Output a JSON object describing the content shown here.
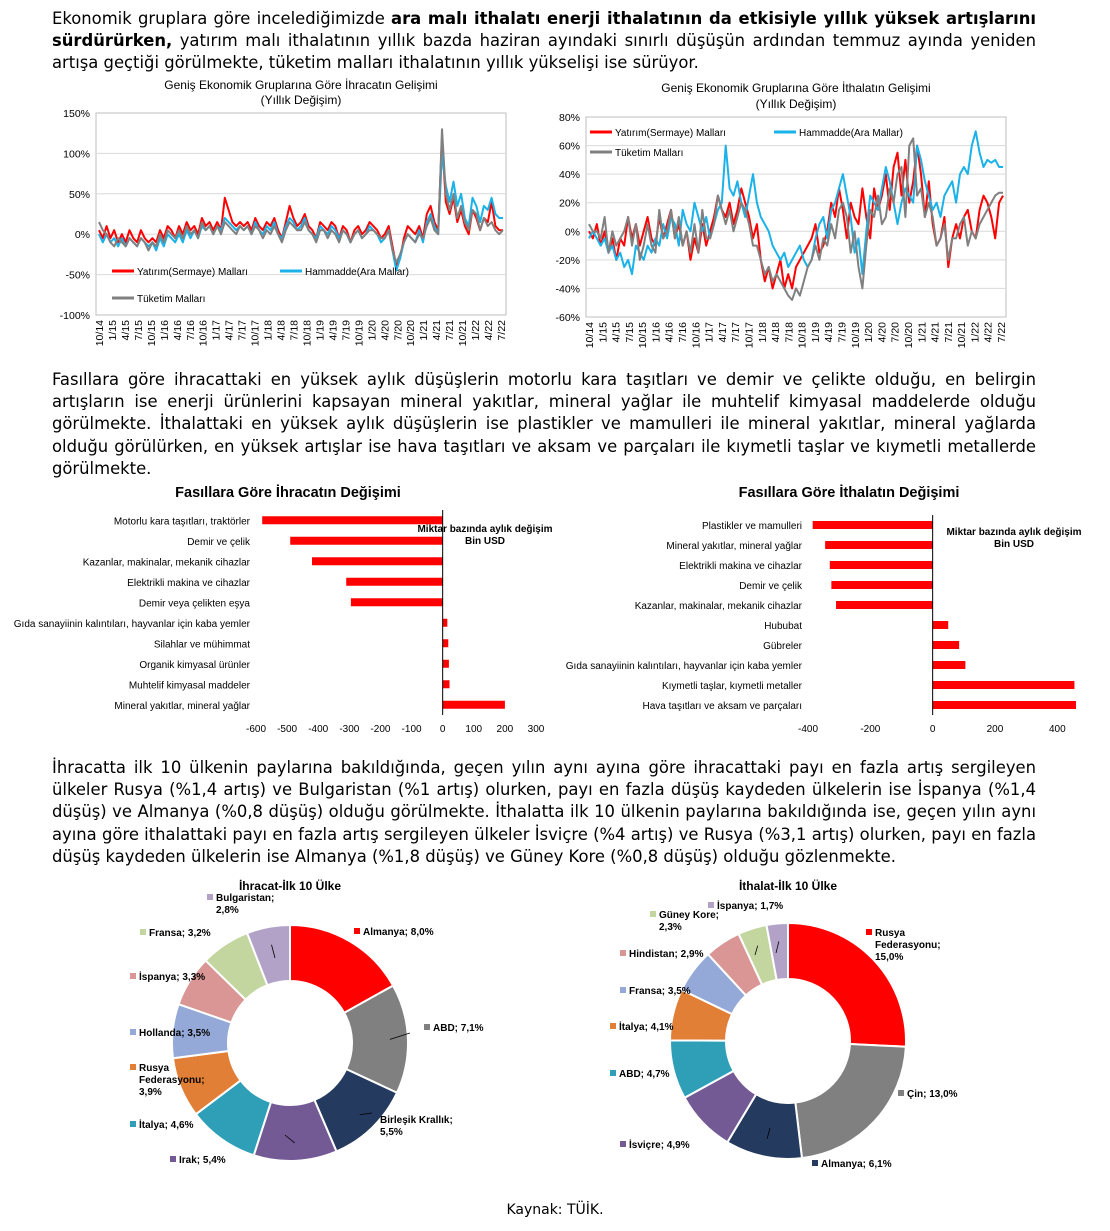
{
  "paragraphs": {
    "p1_normal_a": "Ekonomik gruplara göre incelediğimizde ",
    "p1_bold": "ara malı ithalatı enerji ithalatının da etkisiyle yıllık yüksek artışlarını sürdürürken,",
    "p1_normal_b": " yatırım malı ithalatının yıllık bazda haziran ayındaki sınırlı düşüşün ardından temmuz ayında yeniden artışa geçtiği görülmekte, tüketim malları ithalatının yıllık yükselişi ise sürüyor.",
    "p2": "Fasıllara göre ihracattaki en yüksek aylık düşüşlerin motorlu kara taşıtları ve demir ve çelikte olduğu, en belirgin artışların ise enerji ürünlerini kapsayan mineral yakıtlar, mineral yağlar ile muhtelif kimyasal maddelerde olduğu görülmekte. İthalattaki en yüksek aylık düşüşlerin ise plastikler ve mamulleri ile mineral yakıtlar, mineral yağlarda olduğu görülürken, en yüksek artışlar ise hava taşıtları ve aksam ve parçaları ile kıymetli taşlar ve kıymetli metallerde görülmekte.",
    "p3": "İhracatta ilk 10 ülkenin paylarına bakıldığında, geçen yılın aynı ayına göre ihracattaki payı en fazla artış sergileyen ülkeler Rusya (%1,4 artış) ve Bulgaristan (%1 artış) olurken, payı en fazla düşüş kaydeden ülkelerin ise İspanya (%1,4 düşüş) ve Almanya (%0,8 düşüş) olduğu görülmekte. İthalatta ilk 10 ülkenin paylarına bakıldığında ise, geçen yılın aynı ayına göre ithalattaki payı en fazla artış sergileyen ülkeler İsviçre (%4 artış) ve Rusya (%3,1 artış) olurken, payı en fazla düşüş kaydeden ülkelerin ise Almanya (%1,8 düşüş) ve Güney Kore (%0,8 düşüş) olduğu gözlenmekte."
  },
  "source": "Kaynak: TÜİK.",
  "colors": {
    "red": "#ff0000",
    "blue": "#1ab2e8",
    "gray": "#808080"
  },
  "chart_data": [
    {
      "type": "line",
      "title": "Geniş Ekonomik Gruplarına Göre İhracatın Gelişimi",
      "subtitle": "(Yıllık Değişim)",
      "ylim": [
        -100,
        150
      ],
      "yticks": [
        "150%",
        "100%",
        "50%",
        "0%",
        "-50%",
        "-100%"
      ],
      "grid": true,
      "legend_placement": "bottom-left",
      "x_labels": [
        "10/14",
        "1/15",
        "4/15",
        "7/15",
        "10/15",
        "1/16",
        "4/16",
        "7/16",
        "10/16",
        "1/17",
        "4/17",
        "7/17",
        "10/17",
        "1/18",
        "4/18",
        "7/18",
        "10/18",
        "1/19",
        "4/19",
        "7/19",
        "10/19",
        "1/20",
        "4/20",
        "7/20",
        "10/20",
        "1/21",
        "4/21",
        "7/21",
        "10/21",
        "1/22",
        "4/22",
        "7/22"
      ],
      "series": [
        {
          "name": "Yatırım(Sermaye) Malları",
          "color": "#ff0000",
          "values": [
            5,
            -5,
            10,
            -5,
            5,
            -10,
            0,
            -10,
            5,
            -5,
            -10,
            5,
            -5,
            -10,
            -5,
            -10,
            5,
            -5,
            10,
            5,
            -5,
            10,
            0,
            15,
            5,
            10,
            0,
            20,
            10,
            15,
            5,
            15,
            5,
            45,
            30,
            15,
            10,
            15,
            10,
            15,
            5,
            20,
            10,
            5,
            15,
            10,
            20,
            5,
            -5,
            15,
            35,
            20,
            10,
            15,
            25,
            10,
            5,
            -5,
            15,
            10,
            5,
            15,
            10,
            -5,
            10,
            5,
            -10,
            5,
            10,
            0,
            5,
            15,
            10,
            5,
            -5,
            0,
            10,
            -15,
            -40,
            -30,
            -5,
            10,
            5,
            0,
            10,
            -5,
            25,
            35,
            15,
            5,
            120,
            40,
            25,
            45,
            15,
            30,
            10,
            0,
            30,
            20,
            5,
            20,
            15,
            40,
            10,
            5,
            5
          ]
        },
        {
          "name": "Hammadde(Ara Mallar)",
          "color": "#1ab2e8",
          "values": [
            0,
            -10,
            0,
            -10,
            -5,
            -15,
            -5,
            -15,
            -5,
            -10,
            -15,
            -5,
            -10,
            -15,
            -10,
            -20,
            -5,
            -15,
            0,
            -5,
            -10,
            0,
            -10,
            5,
            -5,
            5,
            -5,
            10,
            5,
            10,
            0,
            10,
            5,
            20,
            15,
            10,
            5,
            10,
            5,
            10,
            0,
            15,
            5,
            0,
            10,
            5,
            15,
            0,
            -5,
            10,
            20,
            15,
            5,
            10,
            20,
            5,
            0,
            -5,
            10,
            5,
            0,
            10,
            5,
            -5,
            5,
            0,
            -10,
            0,
            5,
            -5,
            0,
            10,
            5,
            0,
            -10,
            -5,
            5,
            -20,
            -45,
            -30,
            -10,
            0,
            -5,
            -10,
            5,
            -10,
            15,
            25,
            10,
            0,
            100,
            60,
            40,
            65,
            35,
            50,
            20,
            10,
            45,
            35,
            15,
            35,
            30,
            45,
            25,
            20,
            20
          ]
        },
        {
          "name": "Tüketim Malları",
          "color": "#808080",
          "values": [
            15,
            5,
            0,
            -10,
            -15,
            -5,
            -10,
            -15,
            -5,
            -10,
            -15,
            -5,
            -10,
            -20,
            -10,
            -15,
            0,
            -10,
            5,
            0,
            -5,
            5,
            -5,
            10,
            0,
            5,
            -5,
            15,
            5,
            10,
            0,
            10,
            0,
            15,
            10,
            5,
            0,
            10,
            5,
            10,
            0,
            10,
            5,
            -5,
            5,
            0,
            10,
            0,
            -10,
            5,
            15,
            10,
            5,
            5,
            15,
            5,
            0,
            -10,
            5,
            5,
            -5,
            5,
            0,
            -10,
            5,
            0,
            -10,
            0,
            5,
            -5,
            0,
            5,
            5,
            0,
            -5,
            -5,
            5,
            -20,
            -35,
            -25,
            -10,
            0,
            -5,
            -10,
            0,
            -5,
            10,
            20,
            5,
            0,
            130,
            50,
            30,
            50,
            20,
            35,
            15,
            5,
            30,
            25,
            5,
            20,
            10,
            15,
            5,
            0,
            5
          ]
        }
      ]
    },
    {
      "type": "line",
      "title": "Geniş Ekonomik Gruplarına Göre İthalatın Gelişimi",
      "subtitle": "(Yıllık Değişim)",
      "ylim": [
        -60,
        80
      ],
      "yticks": [
        "80%",
        "60%",
        "40%",
        "20%",
        "0%",
        "-20%",
        "-40%",
        "-60%"
      ],
      "grid": true,
      "legend_placement": "top-left",
      "x_labels": [
        "10/14",
        "1/15",
        "4/15",
        "7/15",
        "10/15",
        "1/16",
        "4/16",
        "7/16",
        "10/16",
        "1/17",
        "4/17",
        "7/17",
        "10/17",
        "1/18",
        "4/18",
        "7/18",
        "10/18",
        "1/19",
        "4/19",
        "7/19",
        "10/19",
        "1/20",
        "4/20",
        "7/20",
        "10/20",
        "1/21",
        "4/21",
        "7/21",
        "10/21",
        "1/22",
        "4/22",
        "7/22"
      ],
      "series": [
        {
          "name": "Yatırım(Sermaye) Malları",
          "color": "#ff0000",
          "values": [
            0,
            -5,
            5,
            -10,
            0,
            -15,
            -5,
            -20,
            -5,
            -10,
            10,
            -5,
            5,
            -10,
            0,
            10,
            -5,
            -10,
            10,
            -5,
            5,
            15,
            -5,
            5,
            -10,
            0,
            -20,
            -5,
            -15,
            5,
            -10,
            0,
            10,
            25,
            15,
            10,
            20,
            5,
            15,
            30,
            20,
            10,
            -5,
            5,
            -20,
            -35,
            -25,
            -40,
            -30,
            -20,
            -40,
            -30,
            -40,
            -25,
            -20,
            -15,
            -10,
            -5,
            5,
            -15,
            -10,
            0,
            20,
            10,
            30,
            15,
            -5,
            20,
            10,
            5,
            30,
            10,
            -5,
            30,
            15,
            25,
            40,
            15,
            45,
            55,
            25,
            50,
            20,
            35,
            60,
            40,
            10,
            35,
            5,
            -10,
            -5,
            10,
            -25,
            -5,
            5,
            -5,
            10,
            15,
            0,
            -5,
            15,
            25,
            20,
            10,
            -5,
            20,
            25
          ]
        },
        {
          "name": "Hammadde(Ara Mallar)",
          "color": "#1ab2e8",
          "values": [
            -5,
            0,
            -5,
            -10,
            -5,
            -15,
            -10,
            -20,
            -15,
            -25,
            -20,
            -30,
            -10,
            -15,
            -20,
            -10,
            -15,
            -5,
            -10,
            5,
            -5,
            10,
            5,
            -10,
            15,
            5,
            0,
            20,
            10,
            0,
            10,
            -5,
            5,
            15,
            20,
            60,
            30,
            25,
            35,
            20,
            10,
            25,
            40,
            20,
            10,
            5,
            0,
            -10,
            -15,
            -20,
            -15,
            -25,
            -20,
            -15,
            -10,
            -20,
            -25,
            -20,
            -5,
            5,
            10,
            -5,
            15,
            20,
            30,
            40,
            25,
            10,
            -15,
            -5,
            -30,
            0,
            25,
            20,
            15,
            30,
            45,
            35,
            20,
            5,
            20,
            30,
            25,
            20,
            60,
            50,
            35,
            25,
            15,
            20,
            10,
            25,
            30,
            35,
            20,
            40,
            45,
            40,
            60,
            70,
            55,
            45,
            50,
            48,
            50,
            45,
            45
          ]
        },
        {
          "name": "Tüketim Malları",
          "color": "#808080",
          "values": [
            5,
            0,
            0,
            -5,
            10,
            -15,
            0,
            -10,
            -5,
            0,
            10,
            -10,
            5,
            -20,
            -10,
            5,
            -10,
            -15,
            15,
            -5,
            0,
            15,
            -5,
            10,
            -10,
            0,
            -15,
            5,
            -15,
            15,
            -5,
            -5,
            5,
            25,
            15,
            5,
            15,
            0,
            10,
            20,
            15,
            5,
            -10,
            -10,
            -20,
            -30,
            -25,
            -35,
            -30,
            -35,
            -40,
            -45,
            -48,
            -40,
            -45,
            -35,
            -25,
            -20,
            -10,
            -20,
            -5,
            -10,
            5,
            -5,
            15,
            20,
            10,
            -15,
            0,
            -25,
            -40,
            -10,
            15,
            10,
            25,
            5,
            10,
            30,
            20,
            40,
            45,
            10,
            60,
            65,
            25,
            30,
            10,
            20,
            10,
            -10,
            -5,
            5,
            -20,
            -5,
            -5,
            5,
            10,
            -10,
            0,
            -5,
            5,
            10,
            15,
            20,
            25,
            27,
            27
          ]
        }
      ]
    },
    {
      "type": "bar",
      "orientation": "horizontal",
      "title": "Fasıllara Göre İhracatın Değişimi",
      "annotation": "Miktar bazında aylık değişim, Bin USD",
      "xlim": [
        -600,
        300
      ],
      "xticks": [
        "-600",
        "-500",
        "-400",
        "-300",
        "-200",
        "-100",
        "0",
        "100",
        "200",
        "300"
      ],
      "categories": [
        "Motorlu kara taşıtları, traktörler",
        "Demir ve çelik",
        "Kazanlar, makinalar, mekanik cihazlar",
        "Elektrikli makina ve cihazlar",
        "Demir veya çelikten eşya",
        "Gıda sanayiinin kalıntıları, hayvanlar için kaba yemler",
        "Silahlar ve mühimmat",
        "Organik kimyasal ürünler",
        "Muhtelif kimyasal maddeler",
        "Mineral yakıtlar, mineral yağlar"
      ],
      "values": [
        -580,
        -490,
        -420,
        -310,
        -295,
        15,
        18,
        20,
        22,
        200
      ],
      "color": "#ff0000"
    },
    {
      "type": "bar",
      "orientation": "horizontal",
      "title": "Fasıllara Göre İthalatın Değişimi",
      "annotation": "Miktar bazında aylık değişim, Bin USD",
      "xlim": [
        -400,
        460
      ],
      "xticks": [
        "-400",
        "-200",
        "0",
        "200",
        "400"
      ],
      "categories": [
        "Plastikler ve mamulleri",
        "Mineral yakıtlar, mineral yağlar",
        "Elektrikli makina ve cihazlar",
        "Demir ve çelik",
        "Kazanlar, makinalar, mekanik cihazlar",
        "Hububat",
        "Gübreler",
        "Gıda sanayiinin kalıntıları, hayvanlar için kaba yemler",
        "Kıymetli taşlar, kıymetli metaller",
        "Hava taşıtları ve  aksam ve parçaları"
      ],
      "values": [
        -385,
        -345,
        -330,
        -325,
        -310,
        50,
        85,
        105,
        455,
        460
      ],
      "color": "#ff0000"
    },
    {
      "type": "pie",
      "title": "İhracat-İlk 10 Ülke",
      "slices": [
        {
          "label": "Almanya; 8,0%",
          "value": 8.0,
          "color": "#ff0000"
        },
        {
          "label": "ABD; 7,1%",
          "value": 7.1,
          "color": "#808080"
        },
        {
          "label": "Birleşik Krallık; 5,5%",
          "value": 5.5,
          "color": "#243a5e"
        },
        {
          "label": "Irak; 5,4%",
          "value": 5.4,
          "color": "#735a94"
        },
        {
          "label": "İtalya; 4,6%",
          "value": 4.6,
          "color": "#2f9fb8"
        },
        {
          "label": "Rusya Federasyonu; 3,9%",
          "value": 3.9,
          "color": "#e07f35"
        },
        {
          "label": "Hollanda; 3,5%",
          "value": 3.5,
          "color": "#95a9d8"
        },
        {
          "label": "İspanya; 3,3%",
          "value": 3.3,
          "color": "#d99694"
        },
        {
          "label": "Fransa; 3,2%",
          "value": 3.2,
          "color": "#c4d6a0"
        },
        {
          "label": "Bulgaristan; 2,8%",
          "value": 2.8,
          "color": "#b3a2c7"
        }
      ]
    },
    {
      "type": "pie",
      "title": "İthalat-İlk 10 Ülke",
      "slices": [
        {
          "label": "Rusya Federasyonu; 15,0%",
          "value": 15.0,
          "color": "#ff0000"
        },
        {
          "label": "Çin; 13,0%",
          "value": 13.0,
          "color": "#808080"
        },
        {
          "label": "Almanya; 6,1%",
          "value": 6.1,
          "color": "#243a5e"
        },
        {
          "label": "İsviçre; 4,9%",
          "value": 4.9,
          "color": "#735a94"
        },
        {
          "label": "ABD; 4,7%",
          "value": 4.7,
          "color": "#2f9fb8"
        },
        {
          "label": "İtalya; 4,1%",
          "value": 4.1,
          "color": "#e07f35"
        },
        {
          "label": "Fransa; 3,5%",
          "value": 3.5,
          "color": "#95a9d8"
        },
        {
          "label": "Hindistan; 2,9%",
          "value": 2.9,
          "color": "#d99694"
        },
        {
          "label": "Güney Kore; 2,3%",
          "value": 2.3,
          "color": "#c4d6a0"
        },
        {
          "label": "İspanya; 1,7%",
          "value": 1.7,
          "color": "#b3a2c7"
        }
      ]
    }
  ]
}
